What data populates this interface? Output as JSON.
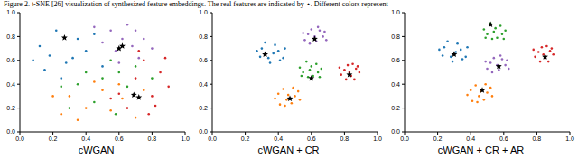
{
  "caption": "Figure 2. t-SNE [26] visualization of synthesized feature embeddings. The real features are indicated by ⋆. Different colors represent",
  "chart_data": [
    {
      "type": "scatter",
      "title": "cWGAN",
      "xlim": [
        0,
        1
      ],
      "ylim": [
        0,
        1
      ],
      "xticks": [
        {
          "value": 0,
          "label": "0.0"
        },
        0.2,
        0.4,
        0.6,
        0.8,
        {
          "value": 1,
          "label": "1.0"
        }
      ],
      "yticks": [
        {
          "value": 0,
          "label": "0.0"
        },
        0.2,
        0.4,
        0.6,
        0.8,
        {
          "value": 1,
          "label": "1.0"
        }
      ],
      "series": [
        {
          "color": "#1f77b4",
          "marker": "dot",
          "values": [
            [
              0.12,
              0.72
            ],
            [
              0.18,
              0.64
            ],
            [
              0.22,
              0.85
            ],
            [
              0.28,
              0.58
            ],
            [
              0.35,
              0.78
            ],
            [
              0.15,
              0.52
            ],
            [
              0.4,
              0.68
            ],
            [
              0.25,
              0.45
            ],
            [
              0.45,
              0.82
            ],
            [
              0.32,
              0.62
            ],
            [
              0.08,
              0.6
            ],
            [
              0.5,
              0.55
            ]
          ]
        },
        {
          "color": "#ff7f0e",
          "marker": "dot",
          "values": [
            [
              0.3,
              0.3
            ],
            [
              0.4,
              0.2
            ],
            [
              0.5,
              0.35
            ],
            [
              0.25,
              0.15
            ],
            [
              0.55,
              0.18
            ],
            [
              0.62,
              0.28
            ],
            [
              0.45,
              0.42
            ],
            [
              0.7,
              0.12
            ],
            [
              0.35,
              0.1
            ],
            [
              0.6,
              0.4
            ],
            [
              0.2,
              0.3
            ],
            [
              0.75,
              0.35
            ]
          ]
        },
        {
          "color": "#2ca02c",
          "marker": "dot",
          "values": [
            [
              0.4,
              0.5
            ],
            [
              0.55,
              0.6
            ],
            [
              0.5,
              0.45
            ],
            [
              0.6,
              0.5
            ],
            [
              0.65,
              0.38
            ],
            [
              0.45,
              0.25
            ],
            [
              0.35,
              0.4
            ],
            [
              0.7,
              0.55
            ],
            [
              0.3,
              0.2
            ],
            [
              0.58,
              0.15
            ],
            [
              0.8,
              0.45
            ],
            [
              0.25,
              0.38
            ]
          ]
        },
        {
          "color": "#d62728",
          "marker": "dot",
          "values": [
            [
              0.7,
              0.45
            ],
            [
              0.8,
              0.3
            ],
            [
              0.75,
              0.6
            ],
            [
              0.85,
              0.5
            ],
            [
              0.9,
              0.38
            ],
            [
              0.65,
              0.2
            ],
            [
              0.78,
              0.15
            ],
            [
              0.6,
              0.32
            ],
            [
              0.88,
              0.62
            ],
            [
              0.72,
              0.68
            ],
            [
              0.55,
              0.28
            ],
            [
              0.82,
              0.22
            ]
          ]
        },
        {
          "color": "#9467bd",
          "marker": "dot",
          "values": [
            [
              0.55,
              0.85
            ],
            [
              0.62,
              0.78
            ],
            [
              0.7,
              0.85
            ],
            [
              0.68,
              0.72
            ],
            [
              0.75,
              0.78
            ],
            [
              0.5,
              0.75
            ],
            [
              0.58,
              0.68
            ],
            [
              0.8,
              0.7
            ],
            [
              0.65,
              0.9
            ],
            [
              0.45,
              0.88
            ],
            [
              0.72,
              0.62
            ],
            [
              0.6,
              0.58
            ]
          ]
        },
        {
          "color": "#000000",
          "marker": "star",
          "values": [
            [
              0.27,
              0.79
            ],
            [
              0.62,
              0.72
            ],
            [
              0.69,
              0.31
            ],
            [
              0.72,
              0.29
            ],
            [
              0.6,
              0.7
            ]
          ]
        }
      ]
    },
    {
      "type": "scatter",
      "title": "cWGAN + CR",
      "xlim": [
        0,
        1
      ],
      "ylim": [
        0,
        1
      ],
      "xticks": [
        {
          "value": 0,
          "label": "0.0"
        },
        0.2,
        0.4,
        0.6,
        0.8,
        {
          "value": 1,
          "label": "1.0"
        }
      ],
      "yticks": [
        {
          "value": 0,
          "label": "0.0"
        },
        0.2,
        0.4,
        0.6,
        0.8,
        {
          "value": 1,
          "label": "1.0"
        }
      ],
      "series": [
        {
          "color": "#1f77b4",
          "marker": "dot",
          "values": [
            [
              0.3,
              0.7
            ],
            [
              0.34,
              0.62
            ],
            [
              0.4,
              0.68
            ],
            [
              0.38,
              0.73
            ],
            [
              0.29,
              0.63
            ],
            [
              0.43,
              0.62
            ],
            [
              0.35,
              0.58
            ],
            [
              0.32,
              0.75
            ],
            [
              0.41,
              0.6
            ],
            [
              0.37,
              0.66
            ],
            [
              0.27,
              0.68
            ],
            [
              0.44,
              0.7
            ]
          ]
        },
        {
          "color": "#9467bd",
          "marker": "dot",
          "values": [
            [
              0.58,
              0.82
            ],
            [
              0.63,
              0.76
            ],
            [
              0.67,
              0.8
            ],
            [
              0.6,
              0.86
            ],
            [
              0.56,
              0.77
            ],
            [
              0.65,
              0.85
            ],
            [
              0.62,
              0.8
            ],
            [
              0.69,
              0.77
            ],
            [
              0.59,
              0.74
            ],
            [
              0.64,
              0.88
            ],
            [
              0.55,
              0.83
            ],
            [
              0.68,
              0.84
            ]
          ]
        },
        {
          "color": "#2ca02c",
          "marker": "dot",
          "values": [
            [
              0.55,
              0.5
            ],
            [
              0.6,
              0.55
            ],
            [
              0.64,
              0.5
            ],
            [
              0.58,
              0.46
            ],
            [
              0.63,
              0.57
            ],
            [
              0.53,
              0.54
            ],
            [
              0.66,
              0.53
            ],
            [
              0.57,
              0.59
            ],
            [
              0.61,
              0.47
            ],
            [
              0.59,
              0.52
            ],
            [
              0.65,
              0.46
            ],
            [
              0.54,
              0.47
            ]
          ]
        },
        {
          "color": "#d62728",
          "marker": "dot",
          "values": [
            [
              0.8,
              0.52
            ],
            [
              0.84,
              0.47
            ],
            [
              0.87,
              0.53
            ],
            [
              0.82,
              0.56
            ],
            [
              0.78,
              0.48
            ],
            [
              0.86,
              0.44
            ],
            [
              0.89,
              0.5
            ],
            [
              0.81,
              0.44
            ],
            [
              0.85,
              0.57
            ],
            [
              0.83,
              0.5
            ],
            [
              0.77,
              0.54
            ],
            [
              0.88,
              0.55
            ]
          ]
        },
        {
          "color": "#ff7f0e",
          "marker": "dot",
          "values": [
            [
              0.4,
              0.32
            ],
            [
              0.45,
              0.27
            ],
            [
              0.5,
              0.3
            ],
            [
              0.43,
              0.36
            ],
            [
              0.48,
              0.24
            ],
            [
              0.38,
              0.28
            ],
            [
              0.52,
              0.34
            ],
            [
              0.46,
              0.31
            ],
            [
              0.41,
              0.23
            ],
            [
              0.49,
              0.37
            ],
            [
              0.44,
              0.22
            ],
            [
              0.53,
              0.27
            ]
          ]
        },
        {
          "color": "#000000",
          "marker": "star",
          "values": [
            [
              0.32,
              0.65
            ],
            [
              0.62,
              0.78
            ],
            [
              0.6,
              0.45
            ],
            [
              0.83,
              0.48
            ],
            [
              0.47,
              0.28
            ]
          ]
        }
      ]
    },
    {
      "type": "scatter",
      "title": "cWGAN + CR + AR",
      "xlim": [
        0,
        1
      ],
      "ylim": [
        0,
        1
      ],
      "xticks": [
        {
          "value": 0,
          "label": "0.0"
        },
        0.2,
        0.4,
        0.6,
        0.8,
        {
          "value": 1,
          "label": "1.0"
        }
      ],
      "yticks": [
        {
          "value": 0,
          "label": "0.0"
        },
        0.2,
        0.4,
        0.6,
        0.8,
        {
          "value": 1,
          "label": "1.0"
        }
      ],
      "series": [
        {
          "color": "#1f77b4",
          "marker": "dot",
          "values": [
            [
              0.24,
              0.71
            ],
            [
              0.28,
              0.63
            ],
            [
              0.34,
              0.69
            ],
            [
              0.32,
              0.74
            ],
            [
              0.23,
              0.64
            ],
            [
              0.37,
              0.63
            ],
            [
              0.29,
              0.59
            ],
            [
              0.26,
              0.76
            ],
            [
              0.35,
              0.61
            ],
            [
              0.31,
              0.67
            ],
            [
              0.21,
              0.69
            ],
            [
              0.38,
              0.71
            ]
          ]
        },
        {
          "color": "#9467bd",
          "marker": "dot",
          "values": [
            [
              0.52,
              0.58
            ],
            [
              0.57,
              0.52
            ],
            [
              0.61,
              0.56
            ],
            [
              0.54,
              0.62
            ],
            [
              0.5,
              0.53
            ],
            [
              0.59,
              0.61
            ],
            [
              0.56,
              0.56
            ],
            [
              0.63,
              0.53
            ],
            [
              0.53,
              0.5
            ],
            [
              0.58,
              0.64
            ],
            [
              0.49,
              0.59
            ],
            [
              0.62,
              0.6
            ]
          ]
        },
        {
          "color": "#2ca02c",
          "marker": "dot",
          "values": [
            [
              0.5,
              0.82
            ],
            [
              0.55,
              0.87
            ],
            [
              0.59,
              0.82
            ],
            [
              0.53,
              0.78
            ],
            [
              0.58,
              0.89
            ],
            [
              0.48,
              0.86
            ],
            [
              0.61,
              0.85
            ],
            [
              0.52,
              0.91
            ],
            [
              0.56,
              0.79
            ],
            [
              0.54,
              0.84
            ],
            [
              0.6,
              0.78
            ],
            [
              0.49,
              0.79
            ]
          ]
        },
        {
          "color": "#d62728",
          "marker": "dot",
          "values": [
            [
              0.81,
              0.67
            ],
            [
              0.85,
              0.62
            ],
            [
              0.88,
              0.68
            ],
            [
              0.83,
              0.71
            ],
            [
              0.79,
              0.63
            ],
            [
              0.87,
              0.59
            ],
            [
              0.9,
              0.65
            ],
            [
              0.82,
              0.59
            ],
            [
              0.86,
              0.72
            ],
            [
              0.84,
              0.65
            ],
            [
              0.78,
              0.69
            ],
            [
              0.89,
              0.7
            ]
          ]
        },
        {
          "color": "#ff7f0e",
          "marker": "dot",
          "values": [
            [
              0.4,
              0.35
            ],
            [
              0.45,
              0.3
            ],
            [
              0.5,
              0.33
            ],
            [
              0.43,
              0.39
            ],
            [
              0.48,
              0.27
            ],
            [
              0.38,
              0.31
            ],
            [
              0.52,
              0.37
            ],
            [
              0.46,
              0.34
            ],
            [
              0.41,
              0.26
            ],
            [
              0.49,
              0.4
            ],
            [
              0.44,
              0.25
            ],
            [
              0.53,
              0.3
            ]
          ]
        },
        {
          "color": "#000000",
          "marker": "star",
          "values": [
            [
              0.52,
              0.9
            ],
            [
              0.57,
              0.55
            ],
            [
              0.85,
              0.63
            ],
            [
              0.47,
              0.35
            ],
            [
              0.3,
              0.65
            ]
          ]
        }
      ]
    }
  ]
}
